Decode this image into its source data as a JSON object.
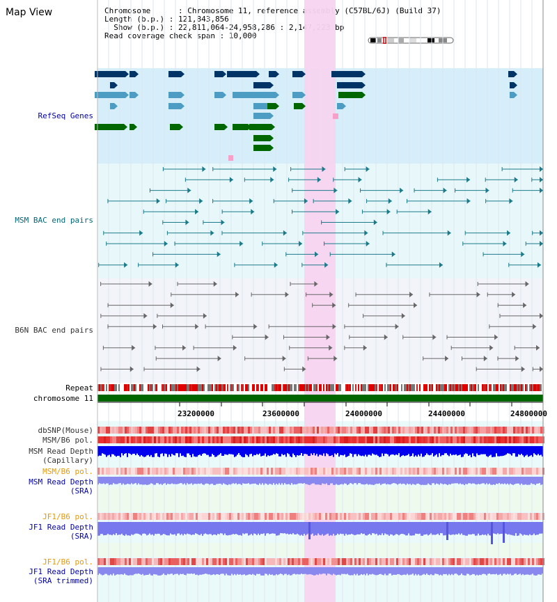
{
  "page": {
    "title": "Map View"
  },
  "info": {
    "chromosome_line": "Chromosome      : Chromosome 11, reference assembly (C57BL/6J) (Build 37)",
    "length_line": "Length (b.p.) : 121,843,856",
    "show_line": "Show (b.p.) : 22,811,064-24,958,286 : 2,147,223 bp",
    "coverage_line": "Read coverage check span : 10,000"
  },
  "tracks": {
    "refseq": "RefSeq Genes",
    "msm_bac": "MSM BAC end pairs",
    "b6n_bac": "B6N BAC end pairs",
    "repeat": "Repeat",
    "chromosome": "chromosome 11",
    "dbsnp": "dbSNP(Mouse)",
    "msm_b6_pol_1": "MSM/B6 pol.",
    "msm_read_depth_cap_1": "MSM Read Depth",
    "msm_read_depth_cap_2": "(Capillary)",
    "msm_b6_pol_2": "MSM/B6 pol.",
    "msm_read_depth_sra_1": "MSM Read Depth",
    "msm_read_depth_sra_2": "(SRA)",
    "jf1_b6_pol_1": "JF1/B6 pol.",
    "jf1_read_depth_sra_1": "JF1 Read Depth",
    "jf1_read_depth_sra_2": "(SRA)",
    "jf1_b6_pol_2": "JF1/B6 pol.",
    "jf1_read_depth_trim_1": "JF1 Read Depth",
    "jf1_read_depth_trim_2": "(SRA trimmed)"
  },
  "axis": {
    "ticks": [
      "23200000",
      "23600000",
      "24000000",
      "24400000",
      "24800000"
    ]
  },
  "colors": {
    "refseq_bg": "#d6eefa",
    "msm_bg": "#e8f8fa",
    "b6n_bg": "#f2f4fa",
    "highlight": "#f7d4f0",
    "gene_dark": "#003366",
    "gene_light": "#4c9cc4",
    "gene_green": "#006600",
    "chromosome_bar": "#006600",
    "read_depth_blue": "#0000ee",
    "read_depth_lavender": "#8888ee"
  }
}
